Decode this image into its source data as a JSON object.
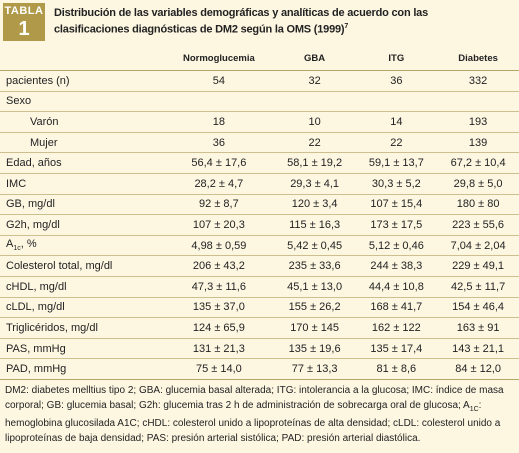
{
  "header": {
    "badge_word": "TABLA",
    "badge_number": "1",
    "title": "Distribución de las variables demográficas y analíticas de acuerdo con las clasificaciones diagnósticas de DM2 según la OMS (1999)",
    "title_ref": "7"
  },
  "table": {
    "columns": [
      "Normoglucemia",
      "GBA",
      "ITG",
      "Diabetes"
    ],
    "rows": [
      {
        "label": "pacientes (n)",
        "values": [
          "54",
          "32",
          "36",
          "332"
        ]
      },
      {
        "label": "Sexo",
        "values": []
      },
      {
        "label": "Varón",
        "indent": true,
        "values": [
          "18",
          "10",
          "14",
          "193"
        ]
      },
      {
        "label": "Mujer",
        "indent": true,
        "values": [
          "36",
          "22",
          "22",
          "139"
        ]
      },
      {
        "label": "Edad, años",
        "values": [
          "56,4 ± 17,6",
          "58,1 ± 19,2",
          "59,1 ± 13,7",
          "67,2 ± 10,4"
        ]
      },
      {
        "label": "IMC",
        "values": [
          "28,2 ± 4,7",
          "29,3 ± 4,1",
          "30,3 ± 5,2",
          "29,8 ± 5,0"
        ]
      },
      {
        "label": "GB, mg/dl",
        "values": [
          "92 ± 8,7",
          "120 ± 3,4",
          "107 ± 15,4",
          "180 ± 80"
        ]
      },
      {
        "label": "G2h, mg/dl",
        "values": [
          "107 ± 20,3",
          "115 ± 16,3",
          "173 ± 17,5",
          "223 ± 55,6"
        ]
      },
      {
        "label": {
          "base": "A",
          "sub": "1c",
          "rest": ", %"
        },
        "values": [
          "4,98 ± 0,59",
          "5,42 ± 0,45",
          "5,12 ± 0,46",
          "7,04 ± 2,04"
        ]
      },
      {
        "label": "Colesterol total, mg/dl",
        "values": [
          "206 ± 43,2",
          "235 ± 33,6",
          "244 ± 38,3",
          "229 ± 49,1"
        ]
      },
      {
        "label": "cHDL, mg/dl",
        "values": [
          "47,3 ± 11,6",
          "45,1 ± 13,0",
          "44,4 ± 10,8",
          "42,5 ± 11,7"
        ]
      },
      {
        "label": "cLDL, mg/dl",
        "values": [
          "135 ± 37,0",
          "155 ± 26,2",
          "168 ± 41,7",
          "154 ± 46,4"
        ]
      },
      {
        "label": "Triglicéridos, mg/dl",
        "values": [
          "124 ± 65,9",
          "170 ± 145",
          "162 ± 122",
          "163 ± 91"
        ]
      },
      {
        "label": "PAS, mmHg",
        "values": [
          "131 ± 21,3",
          "135 ± 19,6",
          "135 ± 17,4",
          "143 ± 21,1"
        ]
      },
      {
        "label": "PAD, mmHg",
        "values": [
          "75 ± 14,0",
          "77 ± 13,3",
          "81 ± 8,6",
          "84 ± 12,0"
        ]
      }
    ]
  },
  "footnote": [
    "DM2: diabetes melltius tipo 2; GBA: glucemia basal alterada; ITG: intolerancia a la glucosa; IMC: índice de masa corporal; GB: glucemia basal; G2h: glucemia tras 2 h de administración de sobrecarga oral de glucosa; A",
    "1C",
    ": hemoglobina glucosilada A1C; cHDL: colesterol unido a lipoproteínas de alta densidad; cLDL: colesterol unido a lipoproteínas de baja densidad; PAS: presión arterial sistólica; PAD: presión arterial diastólica."
  ]
}
